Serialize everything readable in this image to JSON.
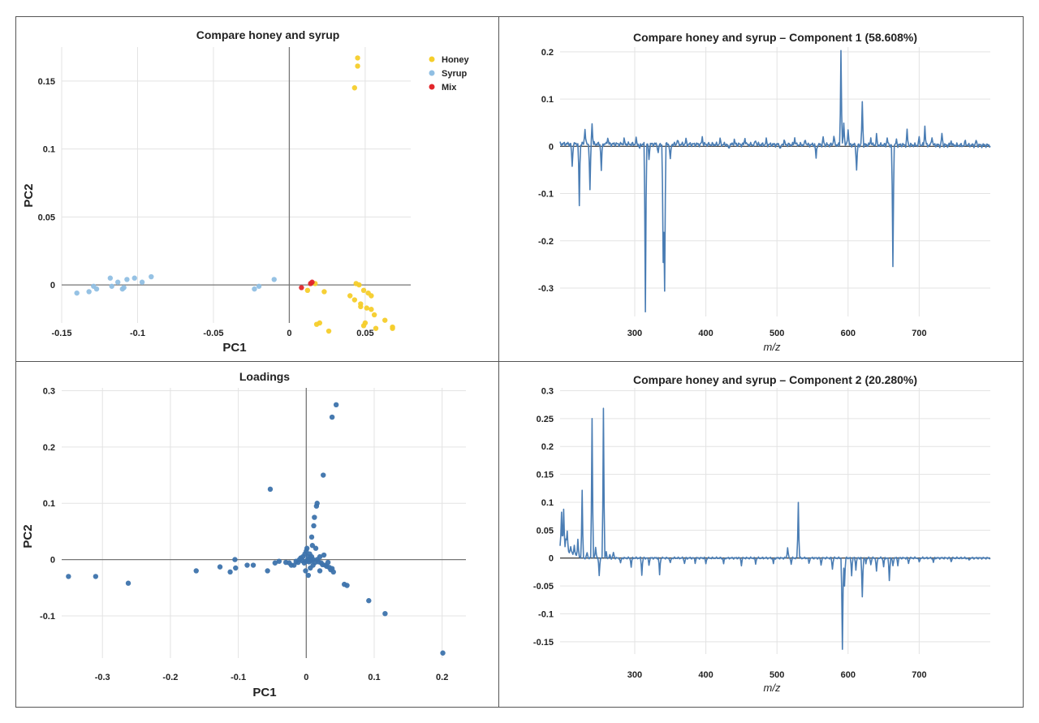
{
  "colors": {
    "honey": "#F5CE2B",
    "syrup": "#90BFE3",
    "mix": "#E2262B",
    "loading": "#3D73AC",
    "line": "#4A7DB4",
    "grid": "#E3E3E3",
    "axis": "#777777",
    "text": "#222222"
  },
  "chart_data": [
    {
      "type": "scatter",
      "title": "Compare honey and syrup",
      "xlabel": "PC1",
      "ylabel": "PC2",
      "xlim": [
        -0.15,
        0.08
      ],
      "ylim": [
        -0.028,
        0.175
      ],
      "xticks": [
        -0.15,
        -0.1,
        -0.05,
        0,
        0.05
      ],
      "xtick_labels": [
        "-0.15",
        "-0.1",
        "-0.05",
        "0",
        "0.05"
      ],
      "yticks": [
        0,
        0.05,
        0.1,
        0.15
      ],
      "ytick_labels": [
        "0",
        "0.05",
        "0.1",
        "0.15"
      ],
      "legend_position": "top-right",
      "series": [
        {
          "name": "Honey",
          "color": "#F5CE2B",
          "points": [
            [
              0.045,
              0.167
            ],
            [
              0.045,
              0.161
            ],
            [
              0.043,
              0.145
            ],
            [
              0.044,
              0.001
            ],
            [
              0.046,
              0.0
            ],
            [
              0.049,
              -0.004
            ],
            [
              0.052,
              -0.006
            ],
            [
              0.054,
              -0.008
            ],
            [
              0.04,
              -0.008
            ],
            [
              0.043,
              -0.011
            ],
            [
              0.047,
              -0.014
            ],
            [
              0.051,
              -0.017
            ],
            [
              0.054,
              -0.018
            ],
            [
              0.047,
              -0.016
            ],
            [
              0.056,
              -0.022
            ],
            [
              0.063,
              -0.026
            ],
            [
              0.05,
              -0.028
            ],
            [
              0.049,
              -0.03
            ],
            [
              0.057,
              -0.032
            ],
            [
              0.068,
              -0.031
            ],
            [
              0.068,
              -0.032
            ],
            [
              0.026,
              -0.034
            ],
            [
              0.018,
              -0.029
            ],
            [
              0.02,
              -0.028
            ],
            [
              0.023,
              -0.005
            ],
            [
              0.017,
              0.001
            ],
            [
              0.012,
              -0.004
            ]
          ]
        },
        {
          "name": "Syrup",
          "color": "#90BFE3",
          "points": [
            [
              -0.14,
              -0.006
            ],
            [
              -0.132,
              -0.005
            ],
            [
              -0.129,
              -0.001
            ],
            [
              -0.127,
              -0.003
            ],
            [
              -0.118,
              0.005
            ],
            [
              -0.117,
              -0.001
            ],
            [
              -0.113,
              0.002
            ],
            [
              -0.11,
              -0.003
            ],
            [
              -0.109,
              -0.002
            ],
            [
              -0.107,
              0.004
            ],
            [
              -0.102,
              0.005
            ],
            [
              -0.097,
              0.002
            ],
            [
              -0.091,
              0.006
            ],
            [
              -0.023,
              -0.003
            ],
            [
              -0.02,
              -0.001
            ],
            [
              -0.01,
              0.004
            ]
          ]
        },
        {
          "name": "Mix",
          "color": "#E2262B",
          "points": [
            [
              0.008,
              -0.002
            ],
            [
              0.014,
              0.001
            ],
            [
              0.015,
              0.002
            ]
          ]
        }
      ]
    },
    {
      "type": "line",
      "title": "Compare honey and syrup – Component 1 (58.608%)",
      "xlabel": "m/z",
      "ylabel": "",
      "xlim": [
        195,
        800
      ],
      "ylim": [
        -0.36,
        0.21
      ],
      "xticks": [
        300,
        400,
        500,
        600,
        700
      ],
      "xtick_labels": [
        "300",
        "400",
        "500",
        "600",
        "700"
      ],
      "yticks": [
        0.2,
        0.1,
        0,
        -0.1,
        -0.2,
        -0.3
      ],
      "ytick_labels": [
        "0.2",
        "0.1",
        "0",
        "-0.1",
        "-0.2",
        "-0.3"
      ],
      "noise_amp": 0.005,
      "baseline": [
        [
          195,
          0.005
        ],
        [
          800,
          0.002
        ]
      ],
      "peaks": [
        [
          212,
          -0.05
        ],
        [
          222,
          -0.13
        ],
        [
          230,
          0.035
        ],
        [
          237,
          -0.1
        ],
        [
          240,
          0.043
        ],
        [
          253,
          -0.055
        ],
        [
          262,
          0.015
        ],
        [
          285,
          0.01
        ],
        [
          302,
          0.01
        ],
        [
          307,
          -0.01
        ],
        [
          315,
          -0.35
        ],
        [
          320,
          -0.03
        ],
        [
          333,
          -0.02
        ],
        [
          340,
          -0.25
        ],
        [
          342,
          -0.31
        ],
        [
          350,
          -0.035
        ],
        [
          360,
          0.01
        ],
        [
          372,
          0.01
        ],
        [
          395,
          0.015
        ],
        [
          420,
          0.01
        ],
        [
          432,
          -0.01
        ],
        [
          440,
          0.01
        ],
        [
          455,
          0.015
        ],
        [
          470,
          0.01
        ],
        [
          485,
          0.01
        ],
        [
          505,
          -0.01
        ],
        [
          510,
          0.01
        ],
        [
          525,
          0.015
        ],
        [
          540,
          0.012
        ],
        [
          555,
          -0.03
        ],
        [
          565,
          0.015
        ],
        [
          580,
          0.02
        ],
        [
          590,
          0.2
        ],
        [
          594,
          0.05
        ],
        [
          600,
          0.035
        ],
        [
          612,
          -0.055
        ],
        [
          620,
          0.09
        ],
        [
          632,
          0.015
        ],
        [
          640,
          0.02
        ],
        [
          655,
          0.015
        ],
        [
          663,
          -0.26
        ],
        [
          668,
          0.01
        ],
        [
          683,
          0.03
        ],
        [
          700,
          0.015
        ],
        [
          708,
          0.04
        ],
        [
          718,
          0.02
        ],
        [
          732,
          0.025
        ],
        [
          745,
          0.01
        ],
        [
          765,
          0.01
        ],
        [
          780,
          0.01
        ]
      ]
    },
    {
      "type": "scatter",
      "title": "Loadings",
      "xlabel": "PC1",
      "ylabel": "PC2",
      "xlim": [
        -0.36,
        0.235
      ],
      "ylim": [
        -0.175,
        0.305
      ],
      "xticks": [
        -0.3,
        -0.2,
        -0.1,
        0,
        0.1,
        0.2
      ],
      "xtick_labels": [
        "-0.3",
        "-0.2",
        "-0.1",
        "0",
        "0.1",
        "0.2"
      ],
      "yticks": [
        0.3,
        0.2,
        0.1,
        0,
        -0.1
      ],
      "ytick_labels": [
        "0.3",
        "0.2",
        "0.1",
        "0",
        "-0.1"
      ],
      "series": [
        {
          "name": "Loadings",
          "color": "#3D73AC",
          "points": [
            [
              -0.35,
              -0.03
            ],
            [
              -0.31,
              -0.03
            ],
            [
              -0.262,
              -0.042
            ],
            [
              -0.162,
              -0.02
            ],
            [
              -0.127,
              -0.013
            ],
            [
              -0.112,
              -0.022
            ],
            [
              -0.105,
              0.0
            ],
            [
              -0.104,
              -0.015
            ],
            [
              -0.087,
              -0.01
            ],
            [
              -0.078,
              -0.01
            ],
            [
              -0.057,
              -0.02
            ],
            [
              -0.053,
              0.125
            ],
            [
              -0.046,
              -0.006
            ],
            [
              -0.04,
              -0.003
            ],
            [
              -0.03,
              -0.005
            ],
            [
              -0.025,
              -0.006
            ],
            [
              -0.022,
              -0.01
            ],
            [
              -0.018,
              -0.01
            ],
            [
              -0.015,
              -0.003
            ],
            [
              -0.012,
              -0.005
            ],
            [
              -0.01,
              0.0
            ],
            [
              -0.008,
              0.003
            ],
            [
              -0.006,
              -0.002
            ],
            [
              -0.005,
              0.005
            ],
            [
              -0.003,
              -0.006
            ],
            [
              -0.002,
              0.01
            ],
            [
              0.0,
              0.015
            ],
            [
              0.0,
              -0.003
            ],
            [
              0.001,
              0.02
            ],
            [
              0.002,
              0.0
            ],
            [
              0.003,
              0.005
            ],
            [
              0.004,
              -0.004
            ],
            [
              0.005,
              0.01
            ],
            [
              0.006,
              0.002
            ],
            [
              0.007,
              -0.002
            ],
            [
              0.008,
              0.04
            ],
            [
              0.008,
              0.005
            ],
            [
              0.009,
              0.025
            ],
            [
              0.01,
              0.0
            ],
            [
              0.01,
              -0.01
            ],
            [
              0.011,
              0.06
            ],
            [
              0.012,
              0.075
            ],
            [
              0.013,
              -0.005
            ],
            [
              0.014,
              0.02
            ],
            [
              0.015,
              0.095
            ],
            [
              0.016,
              0.1
            ],
            [
              0.016,
              0.0
            ],
            [
              0.018,
              -0.004
            ],
            [
              0.02,
              0.005
            ],
            [
              0.022,
              -0.006
            ],
            [
              0.024,
              -0.009
            ],
            [
              0.025,
              0.15
            ],
            [
              0.026,
              0.008
            ],
            [
              0.028,
              -0.01
            ],
            [
              0.03,
              -0.012
            ],
            [
              0.032,
              -0.005
            ],
            [
              0.034,
              -0.014
            ],
            [
              0.036,
              -0.018
            ],
            [
              0.038,
              -0.016
            ],
            [
              0.04,
              -0.022
            ],
            [
              0.038,
              0.253
            ],
            [
              0.044,
              0.275
            ],
            [
              0.056,
              -0.044
            ],
            [
              0.06,
              -0.046
            ],
            [
              0.092,
              -0.073
            ],
            [
              0.116,
              -0.096
            ],
            [
              0.201,
              -0.166
            ],
            [
              0.003,
              -0.028
            ],
            [
              -0.001,
              -0.02
            ],
            [
              0.006,
              -0.015
            ],
            [
              0.02,
              -0.02
            ]
          ]
        }
      ]
    },
    {
      "type": "line",
      "title": "Compare honey and syrup – Component 2 (20.280%)",
      "xlabel": "m/z",
      "ylabel": "",
      "xlim": [
        195,
        800
      ],
      "ylim": [
        -0.172,
        0.305
      ],
      "xticks": [
        300,
        400,
        500,
        600,
        700
      ],
      "xtick_labels": [
        "300",
        "400",
        "500",
        "600",
        "700"
      ],
      "yticks": [
        0.3,
        0.25,
        0.2,
        0.15,
        0.1,
        0.05,
        0,
        -0.05,
        -0.1,
        -0.15
      ],
      "ytick_labels": [
        "0.3",
        "0.25",
        "0.2",
        "0.15",
        "0.1",
        "0.05",
        "0",
        "-0.05",
        "-0.1",
        "-0.15"
      ],
      "noise_amp": 0.002,
      "baseline": [
        [
          195,
          0.02
        ],
        [
          225,
          0.0
        ],
        [
          800,
          0.0
        ]
      ],
      "peaks": [
        [
          197,
          0.065
        ],
        [
          200,
          0.07
        ],
        [
          203,
          0.02
        ],
        [
          205,
          0.035
        ],
        [
          210,
          0.01
        ],
        [
          215,
          0.015
        ],
        [
          220,
          0.03
        ],
        [
          226,
          0.12
        ],
        [
          233,
          0.01
        ],
        [
          240,
          0.25
        ],
        [
          245,
          0.02
        ],
        [
          250,
          -0.03
        ],
        [
          256,
          0.27
        ],
        [
          260,
          0.01
        ],
        [
          265,
          0.005
        ],
        [
          270,
          0.01
        ],
        [
          280,
          -0.01
        ],
        [
          295,
          -0.015
        ],
        [
          310,
          -0.03
        ],
        [
          320,
          -0.012
        ],
        [
          335,
          -0.03
        ],
        [
          350,
          -0.01
        ],
        [
          370,
          -0.01
        ],
        [
          385,
          -0.008
        ],
        [
          400,
          -0.01
        ],
        [
          425,
          -0.01
        ],
        [
          450,
          -0.012
        ],
        [
          470,
          -0.01
        ],
        [
          495,
          -0.01
        ],
        [
          515,
          0.02
        ],
        [
          520,
          -0.01
        ],
        [
          530,
          0.1
        ],
        [
          545,
          -0.01
        ],
        [
          562,
          -0.012
        ],
        [
          578,
          -0.02
        ],
        [
          592,
          -0.165
        ],
        [
          595,
          -0.05
        ],
        [
          605,
          -0.03
        ],
        [
          611,
          -0.02
        ],
        [
          620,
          -0.07
        ],
        [
          625,
          -0.01
        ],
        [
          632,
          -0.012
        ],
        [
          640,
          -0.025
        ],
        [
          650,
          -0.015
        ],
        [
          658,
          -0.04
        ],
        [
          663,
          -0.015
        ],
        [
          670,
          -0.012
        ],
        [
          685,
          -0.01
        ],
        [
          700,
          -0.008
        ],
        [
          720,
          -0.008
        ],
        [
          745,
          -0.006
        ],
        [
          770,
          -0.005
        ]
      ]
    }
  ]
}
